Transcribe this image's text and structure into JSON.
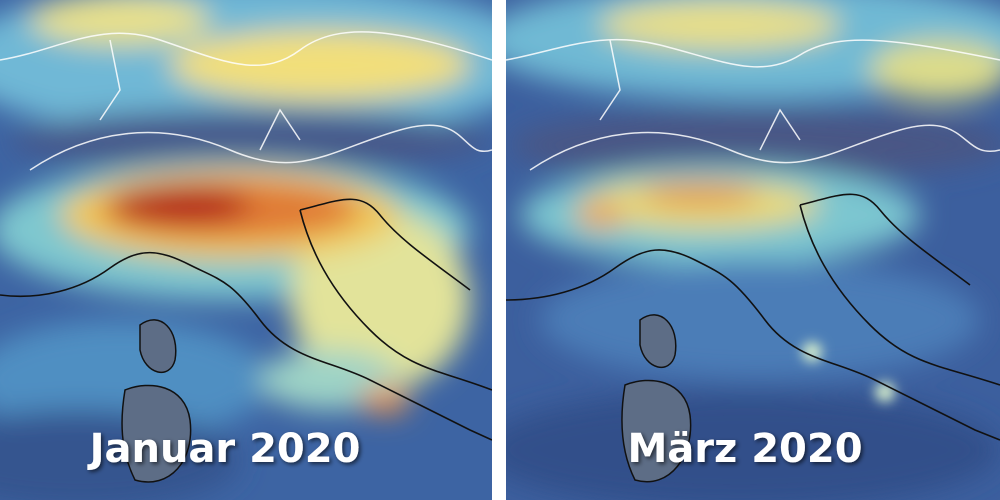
{
  "panels": [
    {
      "label": "Januar 2020"
    },
    {
      "label": "März 2020"
    }
  ]
}
